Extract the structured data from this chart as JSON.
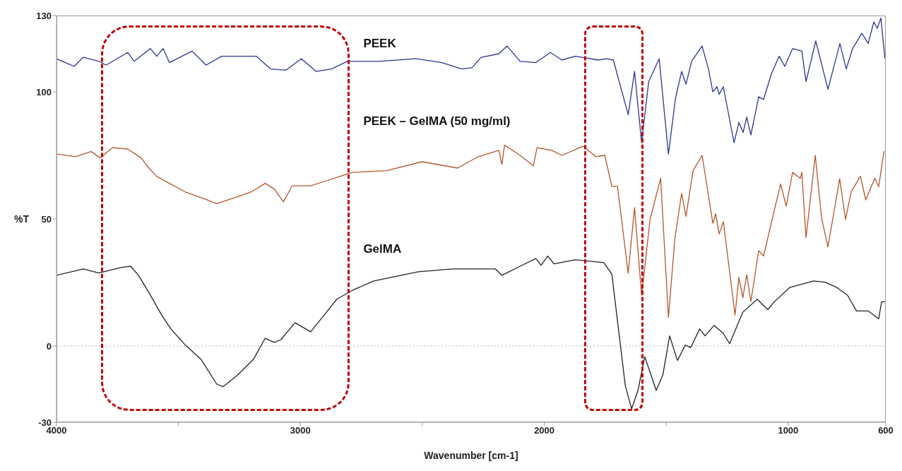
{
  "chart_data": {
    "type": "line",
    "xlabel": "Wavenumber [cm-1]",
    "ylabel": "%T",
    "xlim": [
      4000,
      600
    ],
    "xticks": [
      4000,
      {
        "value": 3500,
        "label": null
      },
      3000,
      {
        "value": 2500,
        "label": null
      },
      2000,
      {
        "value": 1500,
        "label": null
      },
      1000,
      600
    ],
    "ylim": [
      -30,
      130
    ],
    "yticks": [
      -30,
      0,
      50,
      100,
      130
    ],
    "grid": false,
    "marker": "none",
    "line_style": "solid",
    "ref_lines": [
      {
        "axis": "y",
        "value": 0,
        "color": "#b0b0b0",
        "line_style": "dotted"
      }
    ],
    "series": [
      {
        "name": "PEEK",
        "color": "#2b3595",
        "x": [
          4000,
          3928,
          3890,
          3826,
          3797,
          3708,
          3682,
          3615,
          3589,
          3563,
          3537,
          3444,
          3387,
          3323,
          3236,
          3181,
          3123,
          3060,
          2996,
          2935,
          2872,
          2808,
          2756,
          2678,
          2527,
          2420,
          2339,
          2296,
          2260,
          2186,
          2153,
          2099,
          2035,
          1975,
          1928,
          1873,
          1778,
          1743,
          1717,
          1656,
          1630,
          1601,
          1572,
          1529,
          1491,
          1462,
          1437,
          1419,
          1396,
          1353,
          1327,
          1309,
          1292,
          1283,
          1266,
          1222,
          1202,
          1185,
          1170,
          1153,
          1121,
          1101,
          1069,
          1037,
          1014,
          982,
          944,
          927,
          887,
          837,
          788,
          762,
          736,
          698,
          672,
          649,
          635,
          620,
          603
        ],
        "values": [
          113,
          110,
          113.6,
          112,
          110.5,
          115.5,
          112,
          117,
          114,
          117,
          111.5,
          116,
          110.5,
          114,
          114,
          114,
          109,
          108.5,
          113,
          108,
          109,
          112,
          112,
          112,
          113,
          111.5,
          109,
          109.5,
          113.5,
          115,
          118,
          112,
          111.5,
          115.5,
          112.5,
          114,
          112.5,
          113,
          112.5,
          91,
          108,
          80,
          104,
          113,
          75.5,
          97.5,
          108,
          103,
          112,
          118,
          109,
          100,
          102,
          99,
          102,
          80,
          88,
          84,
          90,
          83,
          98,
          97,
          107,
          114,
          110,
          117,
          116,
          104,
          120,
          101,
          119,
          109,
          117,
          123,
          119,
          127.5,
          125,
          129,
          113
        ]
      },
      {
        "name": "PEEK – GelMA (50 mg/ml)",
        "color": "#b5552b",
        "x": [
          4000,
          3922,
          3858,
          3821,
          3771,
          3708,
          3653,
          3621,
          3589,
          3537,
          3470,
          3397,
          3343,
          3280,
          3204,
          3144,
          3106,
          3070,
          3034,
          2958,
          2893,
          2808,
          2785,
          2646,
          2501,
          2356,
          2270,
          2186,
          2174,
          2163,
          2099,
          2045,
          2030,
          1970,
          1928,
          1841,
          1789,
          1752,
          1723,
          1700,
          1656,
          1630,
          1601,
          1566,
          1523,
          1491,
          1465,
          1437,
          1419,
          1390,
          1353,
          1309,
          1297,
          1283,
          1266,
          1218,
          1202,
          1186,
          1170,
          1153,
          1121,
          1101,
          1057,
          1031,
          1008,
          982,
          950,
          944,
          927,
          889,
          863,
          837,
          789,
          765,
          742,
          704,
          682,
          645,
          629,
          607
        ],
        "values": [
          75.5,
          74.5,
          76.5,
          74,
          78,
          77.5,
          74,
          70,
          66.7,
          64,
          60.5,
          58,
          56,
          58,
          60.5,
          64,
          61.7,
          56.7,
          63,
          63,
          65,
          67.7,
          68.3,
          69,
          72.5,
          70,
          74.5,
          77,
          71.4,
          79,
          75,
          70.8,
          78,
          77,
          75,
          78.6,
          74.5,
          75,
          62.8,
          62.8,
          28.6,
          54.4,
          20,
          50,
          66,
          11.2,
          42,
          60,
          51,
          69,
          75,
          48.3,
          52,
          44,
          49,
          12.2,
          27,
          19,
          28,
          17.5,
          37.5,
          35.4,
          53.4,
          63.7,
          55,
          68.3,
          66,
          68.3,
          42.6,
          75,
          50.3,
          39,
          65.8,
          49.8,
          60.6,
          66.8,
          57.5,
          66,
          62.7,
          76.7
        ]
      },
      {
        "name": "GelMA",
        "color": "#222222",
        "x": [
          4000,
          3890,
          3826,
          3740,
          3696,
          3664,
          3621,
          3569,
          3531,
          3472,
          3407,
          3343,
          3317,
          3257,
          3193,
          3145,
          3107,
          3080,
          3022,
          2958,
          2893,
          2851,
          2785,
          2699,
          2517,
          2378,
          2249,
          2200,
          2174,
          2099,
          2035,
          2013,
          1986,
          1960,
          1873,
          1756,
          1723,
          1690,
          1668,
          1642,
          1616,
          1588,
          1541,
          1514,
          1486,
          1454,
          1422,
          1400,
          1363,
          1341,
          1304,
          1266,
          1240,
          1186,
          1127,
          1084,
          1057,
          994,
          896,
          849,
          800,
          757,
          720,
          672,
          650,
          629,
          617,
          603
        ],
        "values": [
          27.8,
          30.3,
          28.7,
          30.8,
          31.4,
          27.8,
          21,
          12.2,
          6.7,
          0.4,
          -5.3,
          -15,
          -16,
          -11.4,
          -5.3,
          3,
          1.4,
          2.5,
          9.2,
          5.6,
          13.3,
          18.4,
          22,
          25.6,
          29.2,
          30.3,
          30.3,
          30.3,
          27.8,
          31.4,
          34.4,
          31.8,
          35.4,
          32.3,
          33.9,
          32.8,
          28.2,
          2,
          -15.6,
          -24.7,
          -17.5,
          -4.2,
          -17.5,
          -11.4,
          4,
          -5.7,
          0.4,
          -0.6,
          6.7,
          4,
          8.1,
          5,
          0.9,
          13.3,
          18.4,
          14.3,
          17.4,
          23,
          25.6,
          25.1,
          23,
          20,
          13.8,
          13.8,
          12.2,
          10.7,
          17.4,
          17.4
        ]
      }
    ]
  }
}
